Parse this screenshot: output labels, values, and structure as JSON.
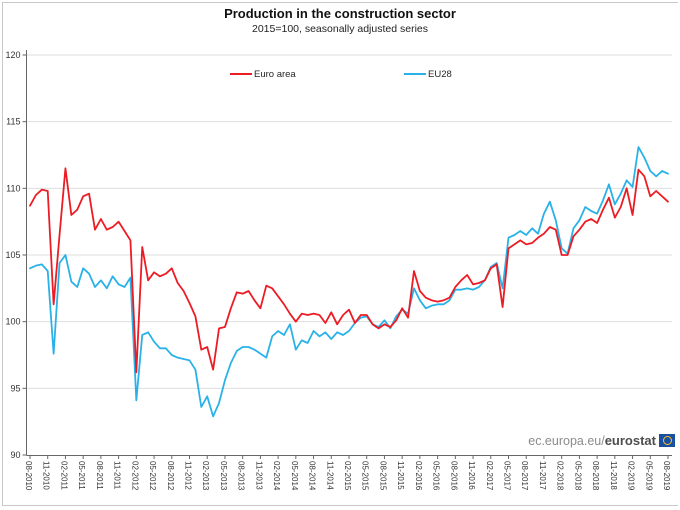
{
  "header": {
    "title": "Production in the construction sector",
    "subtitle": "2015=100, seasonally adjusted series"
  },
  "legend": [
    {
      "label": "Euro area",
      "color": "#ed1c24"
    },
    {
      "label": "EU28",
      "color": "#2ab2e8"
    }
  ],
  "footer": {
    "url_prefix": "ec.europa.eu/",
    "url_bold": "eurostat",
    "logo": "eu-flag-icon"
  },
  "colors": {
    "euro_area": "#ed1c24",
    "eu28": "#2ab2e8",
    "gridline": "#dedede",
    "axis": "#666666",
    "tick_text": "#333333"
  },
  "chart_data": {
    "type": "line",
    "title": "Production in the construction sector",
    "subtitle": "2015=100, seasonally adjusted series",
    "frequency": "monthly",
    "x_start": "08-2010",
    "x_end": "08-2019",
    "grid": true,
    "legend_position": "top",
    "ylim": [
      90,
      120
    ],
    "y_ticks": [
      90,
      95,
      100,
      105,
      110,
      115,
      120
    ],
    "x_tick_labels": [
      "08-2010",
      "11-2010",
      "02-2011",
      "05-2011",
      "08-2011",
      "11-2011",
      "02-2012",
      "05-2012",
      "08-2012",
      "11-2012",
      "02-2013",
      "05-2013",
      "08-2013",
      "11-2013",
      "02-2014",
      "05-2014",
      "08-2014",
      "11-2014",
      "02-2015",
      "05-2015",
      "08-2015",
      "11-2015",
      "02-2016",
      "05-2016",
      "08-2016",
      "11-2016",
      "02-2017",
      "05-2017",
      "08-2017",
      "11-2017",
      "02-2018",
      "05-2018",
      "08-2018",
      "11-2018",
      "02-2019",
      "05-2019",
      "08-2019"
    ],
    "x_tick_every_n_points": 3,
    "series": [
      {
        "name": "Euro area",
        "color": "#ed1c24",
        "values": [
          108.7,
          109.5,
          109.9,
          109.8,
          101.3,
          106.5,
          111.5,
          108.0,
          108.4,
          109.4,
          109.6,
          106.9,
          107.7,
          106.9,
          107.1,
          107.5,
          106.8,
          106.1,
          96.2,
          105.6,
          103.1,
          103.7,
          103.4,
          103.6,
          104.0,
          102.9,
          102.3,
          101.4,
          100.4,
          97.9,
          98.1,
          96.4,
          99.5,
          99.6,
          101.0,
          102.2,
          102.1,
          102.3,
          101.6,
          101.0,
          102.7,
          102.5,
          101.9,
          101.3,
          100.6,
          100.0,
          100.6,
          100.5,
          100.6,
          100.5,
          99.9,
          100.7,
          99.8,
          100.5,
          100.9,
          99.9,
          100.5,
          100.5,
          99.8,
          99.5,
          99.8,
          99.6,
          100.1,
          101.0,
          100.3,
          103.8,
          102.3,
          101.8,
          101.6,
          101.5,
          101.6,
          101.8,
          102.6,
          103.1,
          103.5,
          102.8,
          102.9,
          103.1,
          104.0,
          104.3,
          101.1,
          105.5,
          105.8,
          106.1,
          105.8,
          105.9,
          106.3,
          106.6,
          107.1,
          106.9,
          105.0,
          105.0,
          106.4,
          106.9,
          107.5,
          107.7,
          107.4,
          108.4,
          109.3,
          107.8,
          108.6,
          110.0,
          108.0,
          111.4,
          110.9,
          109.4,
          109.8,
          109.4,
          109.0
        ]
      },
      {
        "name": "EU28",
        "color": "#2ab2e8",
        "values": [
          104.0,
          104.2,
          104.3,
          103.8,
          97.6,
          104.4,
          105.0,
          103.0,
          102.6,
          104.0,
          103.6,
          102.6,
          103.1,
          102.5,
          103.4,
          102.8,
          102.6,
          103.3,
          94.1,
          99.0,
          99.2,
          98.5,
          98.0,
          98.0,
          97.5,
          97.3,
          97.2,
          97.1,
          96.4,
          93.6,
          94.4,
          92.9,
          93.9,
          95.6,
          96.9,
          97.8,
          98.1,
          98.1,
          97.9,
          97.6,
          97.3,
          98.9,
          99.3,
          99.0,
          99.8,
          97.9,
          98.6,
          98.4,
          99.3,
          98.9,
          99.2,
          98.7,
          99.2,
          99.0,
          99.3,
          99.9,
          100.3,
          100.4,
          99.8,
          99.6,
          100.1,
          99.5,
          100.4,
          100.9,
          100.6,
          102.5,
          101.6,
          101.0,
          101.2,
          101.3,
          101.3,
          101.6,
          102.4,
          102.4,
          102.5,
          102.4,
          102.6,
          103.1,
          104.1,
          104.4,
          102.5,
          106.3,
          106.5,
          106.8,
          106.5,
          107.0,
          106.6,
          108.1,
          109.0,
          107.6,
          105.5,
          105.1,
          107.0,
          107.6,
          108.6,
          108.3,
          108.1,
          109.1,
          110.3,
          108.8,
          109.6,
          110.6,
          110.1,
          113.1,
          112.3,
          111.3,
          110.9,
          111.3,
          111.1
        ]
      }
    ]
  }
}
